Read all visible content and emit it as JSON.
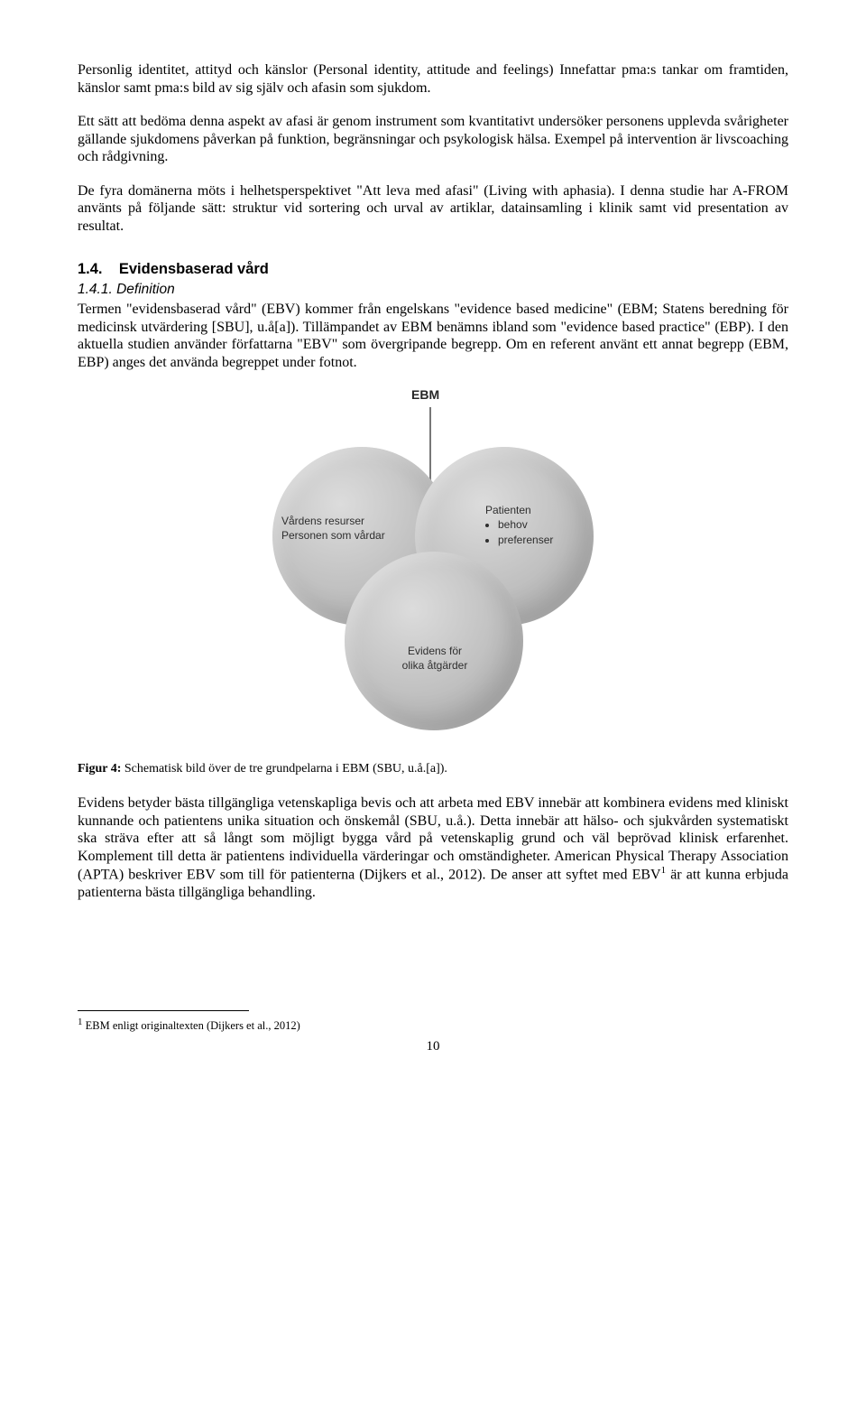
{
  "para1": "Personlig identitet, attityd och känslor (Personal identity, attitude and feelings) Innefattar pma:s tankar om framtiden, känslor samt pma:s bild av sig själv och afasin som sjukdom.",
  "para2": "Ett sätt att bedöma denna aspekt av afasi är genom instrument som kvantitativt undersöker personens upplevda svårigheter gällande sjukdomens påverkan på funktion, begränsningar och psykologisk hälsa. Exempel på intervention är livscoaching och rådgivning.",
  "para3": "De fyra domänerna möts i helhetsperspektivet \"Att leva med afasi\" (Living with aphasia). I denna studie har A-FROM använts på följande sätt: struktur vid sortering och urval av artiklar, datainsamling i klinik samt vid presentation av resultat.",
  "heading1_num": "1.4.",
  "heading1_text": "Evidensbaserad vård",
  "heading2": "1.4.1. Definition",
  "para4": "Termen \"evidensbaserad vård\" (EBV) kommer från engelskans \"evidence based medicine\" (EBM; Statens beredning för medicinsk utvärdering [SBU], u.å[a]). Tillämpandet av EBM benämns ibland som \"evidence based practice\" (EBP). I den aktuella studien använder författarna \"EBV\" som övergripande begrepp. Om en referent använt ett annat begrepp (EBM, EBP) anges det använda begreppet under fotnot.",
  "diagram": {
    "title": "EBM",
    "left_line1": "Vårdens resurser",
    "left_line2": "Personen som vårdar",
    "right_title": "Patienten",
    "right_b1": "behov",
    "right_b2": "preferenser",
    "bottom_line1": "Evidens för",
    "bottom_line2": "olika åtgärder",
    "circle_color": "#c4c4c4",
    "text_color": "#2e2e2e",
    "bg": "#ffffff"
  },
  "caption_bold": "Figur 4:",
  "caption_rest": " Schematisk bild över de tre grundpelarna i EBM (SBU, u.å.[a]).",
  "para5_a": "Evidens betyder bästa tillgängliga vetenskapliga bevis och att arbeta med EBV innebär att kombinera evidens med kliniskt kunnande och patientens unika situation och önskemål (SBU, u.å.). Detta innebär att hälso- och sjukvården systematiskt ska sträva efter att så långt som möjligt bygga vård på vetenskaplig grund och väl beprövad klinisk erfarenhet. Komplement till detta är patientens individuella värderingar och omständigheter. American Physical Therapy Association (APTA) beskriver EBV som till för patienterna (Dijkers et al., 2012). De anser att syftet med EBV",
  "para5_sup": "1",
  "para5_b": " är att kunna erbjuda patienterna bästa tillgängliga behandling.",
  "footnote_sup": "1",
  "footnote_text": " EBM enligt originaltexten (Dijkers et al., 2012)",
  "page_number": "10"
}
